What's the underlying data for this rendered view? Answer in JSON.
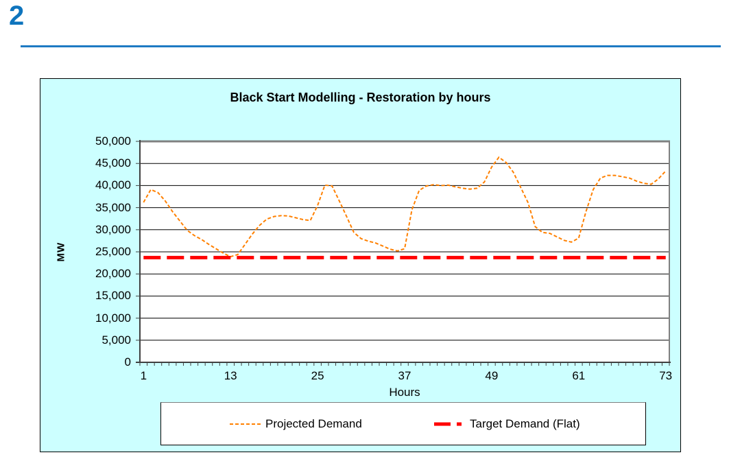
{
  "page": {
    "section_number": "2"
  },
  "chart": {
    "title": "Black Start Modelling - Restoration by hours",
    "y_axis_label": "MW",
    "x_axis_label": "Hours",
    "y_tick_labels": [
      "0",
      "5,000",
      "10,000",
      "15,000",
      "20,000",
      "25,000",
      "30,000",
      "35,000",
      "40,000",
      "45,000",
      "50,000"
    ],
    "x_tick_labels": [
      "1",
      "13",
      "25",
      "37",
      "49",
      "61",
      "73"
    ],
    "colors": {
      "chart_background": "#CCFFFF",
      "plot_background": "#FFFFFF",
      "projected": "#FF8000",
      "target": "#FF0000",
      "accent_blue": "#1E7AC3",
      "gridline": "#000000",
      "axis": "#404040",
      "plot_border": "#808080"
    },
    "legend": {
      "projected_label": "Projected Demand",
      "target_label": "Target Demand (Flat)"
    }
  },
  "chart_data": {
    "type": "line",
    "title": "Black Start Modelling - Restoration by hours",
    "xlabel": "Hours",
    "ylabel": "MW",
    "xlim": [
      1,
      73
    ],
    "ylim": [
      0,
      50000
    ],
    "y_step": 5000,
    "x_ticks": [
      1,
      13,
      25,
      37,
      49,
      61,
      73
    ],
    "grid": "horizontal",
    "legend_position": "bottom",
    "x": [
      1,
      2,
      3,
      4,
      5,
      6,
      7,
      8,
      9,
      10,
      11,
      12,
      13,
      14,
      15,
      16,
      17,
      18,
      19,
      20,
      21,
      22,
      23,
      24,
      25,
      26,
      27,
      28,
      29,
      30,
      31,
      32,
      33,
      34,
      35,
      36,
      37,
      38,
      39,
      40,
      41,
      42,
      43,
      44,
      45,
      46,
      47,
      48,
      49,
      50,
      51,
      52,
      53,
      54,
      55,
      56,
      57,
      58,
      59,
      60,
      61,
      62,
      63,
      64,
      65,
      66,
      67,
      68,
      69,
      70,
      71,
      72,
      73
    ],
    "series": [
      {
        "name": "Projected Demand",
        "color": "#FF8000",
        "line_style": "dashed-thin",
        "stroke_width": 2,
        "dash": "5 3",
        "values": [
          36200,
          39100,
          38400,
          36500,
          34100,
          32000,
          29900,
          28700,
          27800,
          26700,
          25700,
          24700,
          23900,
          24400,
          26700,
          29000,
          31000,
          32400,
          33000,
          33200,
          33100,
          32700,
          32300,
          32100,
          35500,
          40100,
          39900,
          36500,
          33000,
          29400,
          28000,
          27400,
          27000,
          26300,
          25600,
          25200,
          25700,
          34500,
          38900,
          39900,
          40200,
          40000,
          40100,
          39700,
          39400,
          39200,
          39400,
          40800,
          44200,
          46400,
          45200,
          43000,
          39600,
          36200,
          30700,
          29400,
          29200,
          28400,
          27600,
          27200,
          28100,
          34100,
          39100,
          41700,
          42300,
          42300,
          42000,
          41700,
          41000,
          40500,
          40300,
          41500,
          43300
        ]
      },
      {
        "name": "Target Demand (Flat)",
        "color": "#FF0000",
        "line_style": "dashed-thick",
        "stroke_width": 5,
        "dash": "25 9",
        "constant_value": 23700
      }
    ]
  }
}
